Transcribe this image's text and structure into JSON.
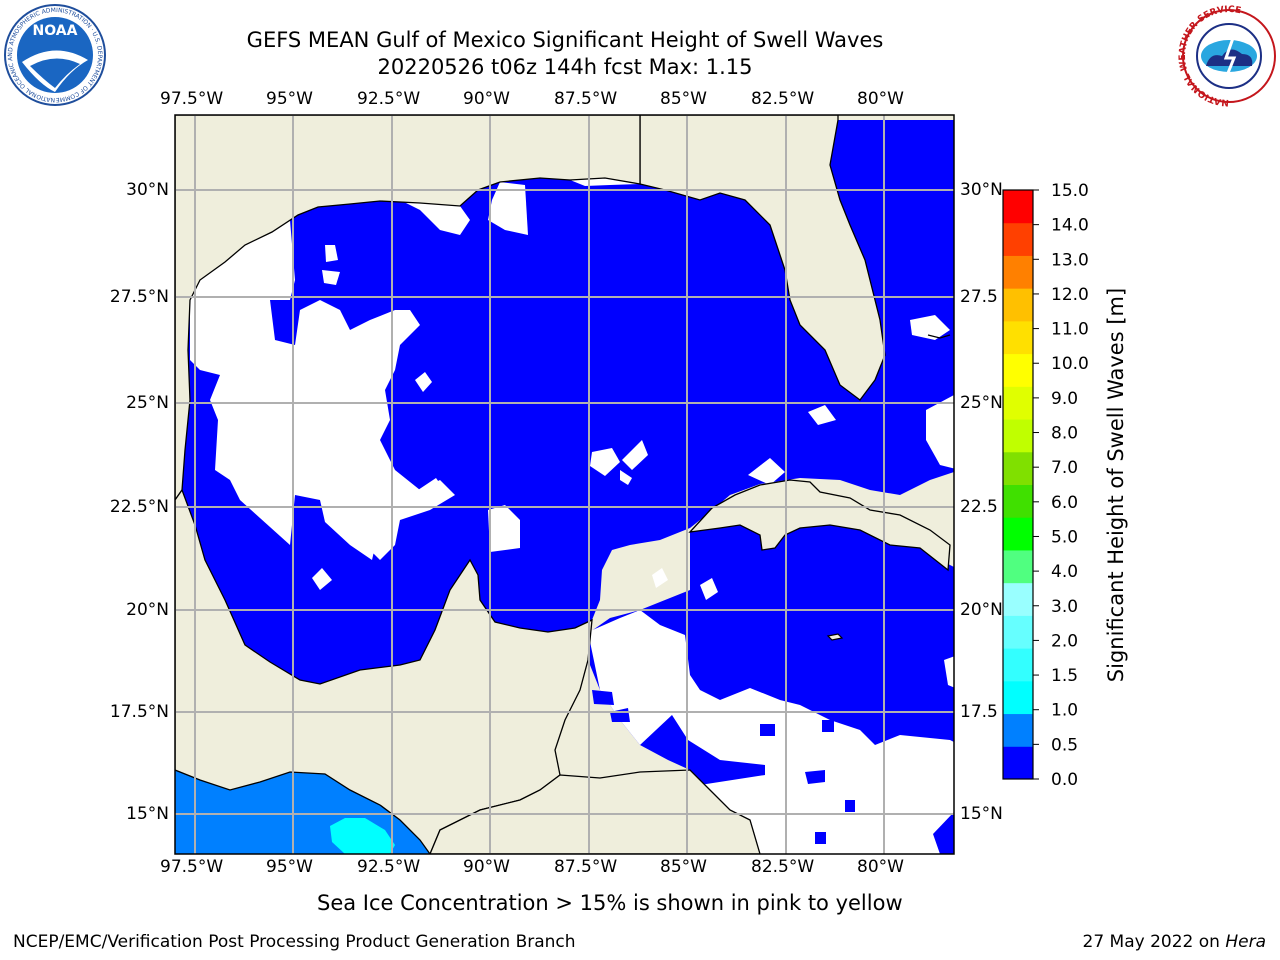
{
  "header": {
    "title_line1": "GEFS MEAN Gulf of Mexico Significant Height of Swell Waves",
    "title_line2": "20220526 t06z 144h fcst   Max: 1.15"
  },
  "logos": {
    "left": {
      "name": "NOAA",
      "ring_text": "NATIONAL OCEANIC AND ATMOSPHERIC ADMINISTRATION · U.S. DEPARTMENT OF COMMERCE"
    },
    "right": {
      "ring_text": "NATIONAL WEATHER SERVICE"
    }
  },
  "map": {
    "lon_labels": [
      "97.5°W",
      "95°W",
      "92.5°W",
      "90°W",
      "87.5°W",
      "85°W",
      "82.5°W",
      "80°W"
    ],
    "lat_labels_left": [
      "30°N",
      "27.5°N",
      "25°N",
      "22.5°N",
      "20°N",
      "17.5°N",
      "15°N"
    ],
    "lat_labels_right": [
      "30°N",
      "27.5",
      "25°N",
      "22.5",
      "20°N",
      "17.5",
      "15°N"
    ],
    "colors": {
      "land": "#efeedc",
      "ocean_low": "#0000ff",
      "ocean_mid": "#0080ff",
      "ocean_high": "#00ffff",
      "grid": "#b0b0b0"
    }
  },
  "colorbar": {
    "label": "Significant Height of Swell Waves [m]",
    "ticks": [
      "0.0",
      "0.5",
      "1.0",
      "1.5",
      "2.0",
      "3.0",
      "4.0",
      "5.0",
      "6.0",
      "7.0",
      "8.0",
      "9.0",
      "10.0",
      "11.0",
      "12.0",
      "13.0",
      "14.0",
      "15.0"
    ],
    "colors": [
      "#0000ff",
      "#0080ff",
      "#00ffff",
      "#33ffff",
      "#66ffff",
      "#99ffff",
      "#50ff80",
      "#00ff00",
      "#40e000",
      "#80e000",
      "#c0ff00",
      "#e0ff00",
      "#ffff00",
      "#ffe000",
      "#ffc000",
      "#ff8000",
      "#ff4000",
      "#ff0000"
    ]
  },
  "notes": {
    "sea_ice": "Sea Ice Concentration > 15% is shown in pink to yellow"
  },
  "footer": {
    "left": "NCEP/EMC/Verification Post Processing Product Generation Branch",
    "right_prefix": "27 May 2022 on ",
    "right_italic": "Hera"
  }
}
